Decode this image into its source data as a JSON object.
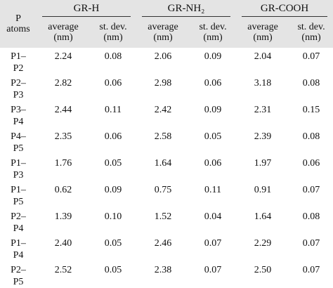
{
  "table": {
    "row_header": "P atoms",
    "groups": [
      {
        "name": "GR-H",
        "columns": [
          "average (nm)",
          "st. dev. (nm)"
        ]
      },
      {
        "name": "GR-NH₂",
        "columns": [
          "average (nm)",
          "st. dev. (nm)"
        ]
      },
      {
        "name": "GR-COOH",
        "columns": [
          "average (nm)",
          "st. dev. (nm)"
        ]
      }
    ],
    "rows": [
      {
        "label": "P1–P2",
        "values": [
          "2.24",
          "0.08",
          "2.06",
          "0.09",
          "2.04",
          "0.07"
        ]
      },
      {
        "label": "P2–P3",
        "values": [
          "2.82",
          "0.06",
          "2.98",
          "0.06",
          "3.18",
          "0.08"
        ]
      },
      {
        "label": "P3–P4",
        "values": [
          "2.44",
          "0.11",
          "2.42",
          "0.09",
          "2.31",
          "0.15"
        ]
      },
      {
        "label": "P4–P5",
        "values": [
          "2.35",
          "0.06",
          "2.58",
          "0.05",
          "2.39",
          "0.08"
        ]
      },
      {
        "label": "P1–P3",
        "values": [
          "1.76",
          "0.05",
          "1.64",
          "0.06",
          "1.97",
          "0.06"
        ]
      },
      {
        "label": "P1–P5",
        "values": [
          "0.62",
          "0.09",
          "0.75",
          "0.11",
          "0.91",
          "0.07"
        ]
      },
      {
        "label": "P2–P4",
        "values": [
          "1.39",
          "0.10",
          "1.52",
          "0.04",
          "1.64",
          "0.08"
        ]
      },
      {
        "label": "P1–P4",
        "values": [
          "2.40",
          "0.05",
          "2.46",
          "0.07",
          "2.29",
          "0.07"
        ]
      },
      {
        "label": "P2–P5",
        "values": [
          "2.52",
          "0.05",
          "2.38",
          "0.07",
          "2.50",
          "0.07"
        ]
      }
    ]
  }
}
